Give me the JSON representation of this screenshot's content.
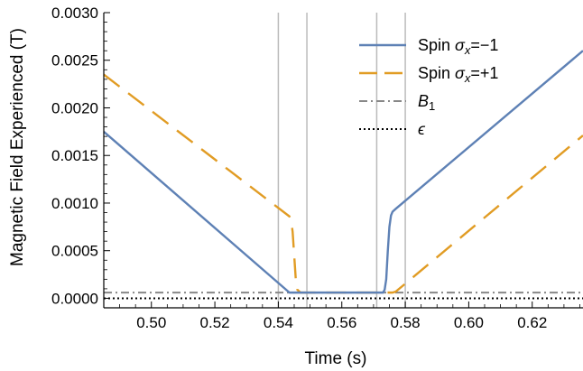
{
  "chart_data": {
    "type": "line",
    "title": "",
    "xlabel": "Time (s)",
    "ylabel": "Magnetic Field Experienced (T)",
    "xlim": [
      0.485,
      0.636
    ],
    "ylim": [
      -0.0001,
      0.003
    ],
    "x_ticks": [
      0.5,
      0.52,
      0.54,
      0.56,
      0.58,
      0.6,
      0.62
    ],
    "x_tick_labels": [
      "0.50",
      "0.52",
      "0.54",
      "0.56",
      "0.58",
      "0.60",
      "0.62"
    ],
    "y_ticks": [
      0.0,
      0.0005,
      0.001,
      0.0015,
      0.002,
      0.0025,
      0.003
    ],
    "y_tick_labels": [
      "0.0000",
      "0.0005",
      "0.0010",
      "0.0015",
      "0.0020",
      "0.0025",
      "0.0030"
    ],
    "vertical_lines": [
      0.54,
      0.549,
      0.571,
      0.58
    ],
    "legend_position": "top-right",
    "series": [
      {
        "name": "Spin σx=−1",
        "legend_main": "Spin ",
        "legend_symbol": "σ",
        "legend_sub": "x",
        "legend_suffix": "=−1",
        "style": "solid",
        "color": "#5e81b5",
        "x": [
          0.485,
          0.5435,
          0.5445,
          0.545,
          0.573,
          0.5735,
          0.574,
          0.5745,
          0.575,
          0.5755,
          0.576,
          0.577,
          0.636
        ],
        "y": [
          0.00175,
          6e-05,
          6e-05,
          6e-05,
          6e-05,
          9e-05,
          0.0002,
          0.0005,
          0.00075,
          0.00087,
          0.00091,
          0.00094,
          0.0026
        ]
      },
      {
        "name": "Spin σx=+1",
        "legend_main": "Spin ",
        "legend_symbol": "σ",
        "legend_sub": "x",
        "legend_suffix": "=+1",
        "style": "dashed",
        "color": "#e19c24",
        "x": [
          0.485,
          0.5435,
          0.544,
          0.5445,
          0.545,
          0.5455,
          0.546,
          0.547,
          0.574,
          0.575,
          0.576,
          0.577,
          0.636
        ],
        "y": [
          0.00235,
          0.00086,
          0.00082,
          0.0007,
          0.00045,
          0.0002,
          9e-05,
          6e-05,
          6e-05,
          6e-05,
          6e-05,
          7e-05,
          0.00171
        ]
      },
      {
        "name": "B1",
        "legend_main": "B",
        "legend_sub": "1",
        "style": "dashdot",
        "color": "#888888",
        "x": [
          0.485,
          0.636
        ],
        "y": [
          6e-05,
          6e-05
        ]
      },
      {
        "name": "ε",
        "legend_main": "ϵ",
        "style": "dotted",
        "color": "#000000",
        "x": [
          0.485,
          0.636
        ],
        "y": [
          0.0,
          0.0
        ]
      }
    ]
  }
}
